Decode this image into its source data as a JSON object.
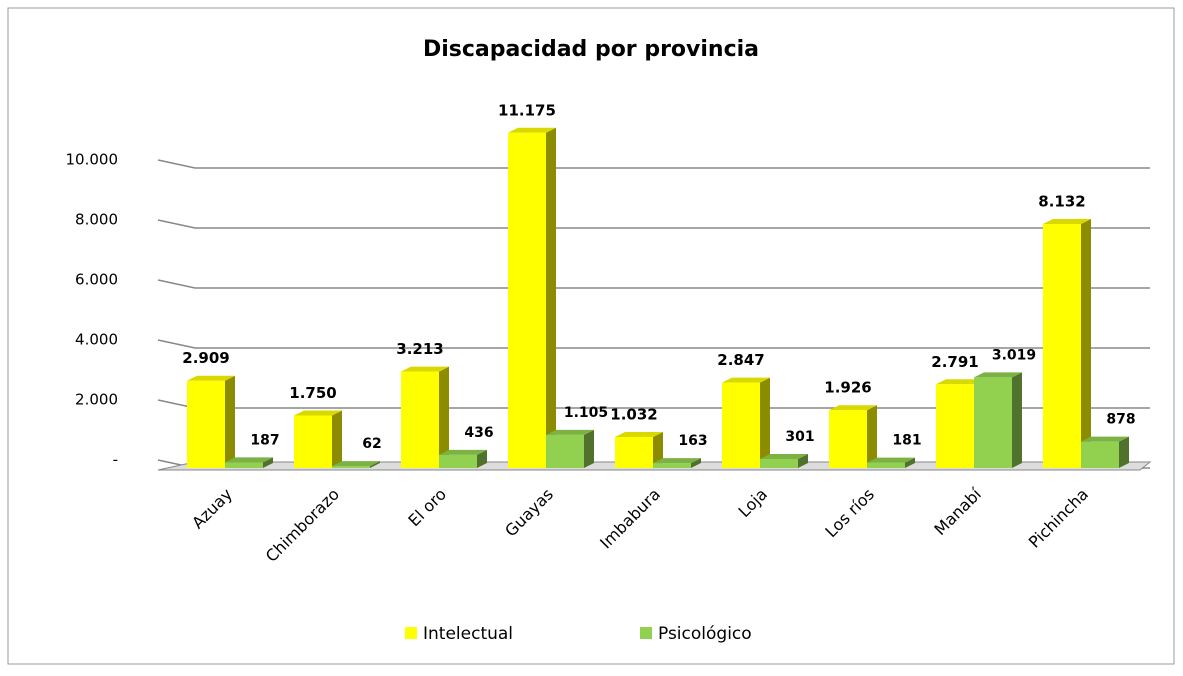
{
  "chart_data": {
    "type": "bar",
    "title": "Discapacidad por provincia",
    "categories": [
      "Azuay",
      "Chimborazo",
      "El oro",
      "Guayas",
      "Imbabura",
      "Loja",
      "Los ríos",
      "Manabí",
      "Pichincha"
    ],
    "series": [
      {
        "name": "Intelectual",
        "color": "#ffff00",
        "values": [
          2909,
          1750,
          3213,
          11175,
          1032,
          2847,
          1926,
          2791,
          8132
        ],
        "value_labels": [
          "2.909",
          "1.750",
          "3.213",
          "11.175",
          "1.032",
          "2.847",
          "1.926",
          "2.791",
          "8.132"
        ]
      },
      {
        "name": "Psicológico",
        "color": "#92d050",
        "values": [
          187,
          62,
          436,
          1105,
          163,
          301,
          181,
          3019,
          878
        ],
        "value_labels": [
          "187",
          "62",
          "436",
          "1.105",
          "163",
          "301",
          "181",
          "3.019",
          "878"
        ]
      }
    ],
    "ylim": [
      0,
      10000
    ],
    "yticks": [
      {
        "value": 0,
        "label": "-"
      },
      {
        "value": 2000,
        "label": "2.000"
      },
      {
        "value": 4000,
        "label": "4.000"
      },
      {
        "value": 6000,
        "label": "6.000"
      },
      {
        "value": 8000,
        "label": "8.000"
      },
      {
        "value": 10000,
        "label": "10.000"
      }
    ],
    "grid": true
  }
}
